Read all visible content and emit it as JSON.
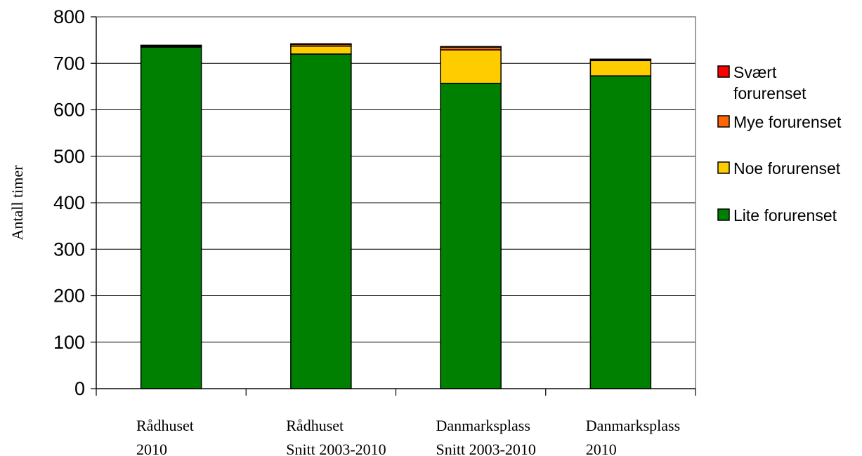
{
  "chart_data": {
    "type": "bar",
    "stacked": true,
    "title": "",
    "xlabel": "",
    "ylabel": "Antall timer",
    "ylim": [
      0,
      800
    ],
    "yticks": [
      0,
      100,
      200,
      300,
      400,
      500,
      600,
      700,
      800
    ],
    "grid": true,
    "legend_position": "right",
    "categories": [
      [
        "Rådhuset",
        "2010"
      ],
      [
        "Rådhuset",
        "Snitt 2003-2010"
      ],
      [
        "Danmarksplass",
        "Snitt 2003-2010"
      ],
      [
        "Danmarksplass",
        "2010"
      ]
    ],
    "series": [
      {
        "name": "Lite forurenset",
        "color": "#008000",
        "values": [
          735,
          720,
          657,
          673
        ]
      },
      {
        "name": "Noe forurenset",
        "color": "#FFCC00",
        "values": [
          2,
          17,
          72,
          33
        ]
      },
      {
        "name": "Mye forurenset",
        "color": "#FF6600",
        "values": [
          1,
          4,
          6,
          2
        ]
      },
      {
        "name": "Svært forurenset",
        "color": "#FF0000",
        "values": [
          1,
          1,
          1,
          1
        ]
      }
    ],
    "legend_order": [
      [
        "Svært",
        "forurenset"
      ],
      [
        "Mye forurenset"
      ],
      [
        "Noe forurenset"
      ],
      [
        "Lite forurenset"
      ]
    ]
  }
}
